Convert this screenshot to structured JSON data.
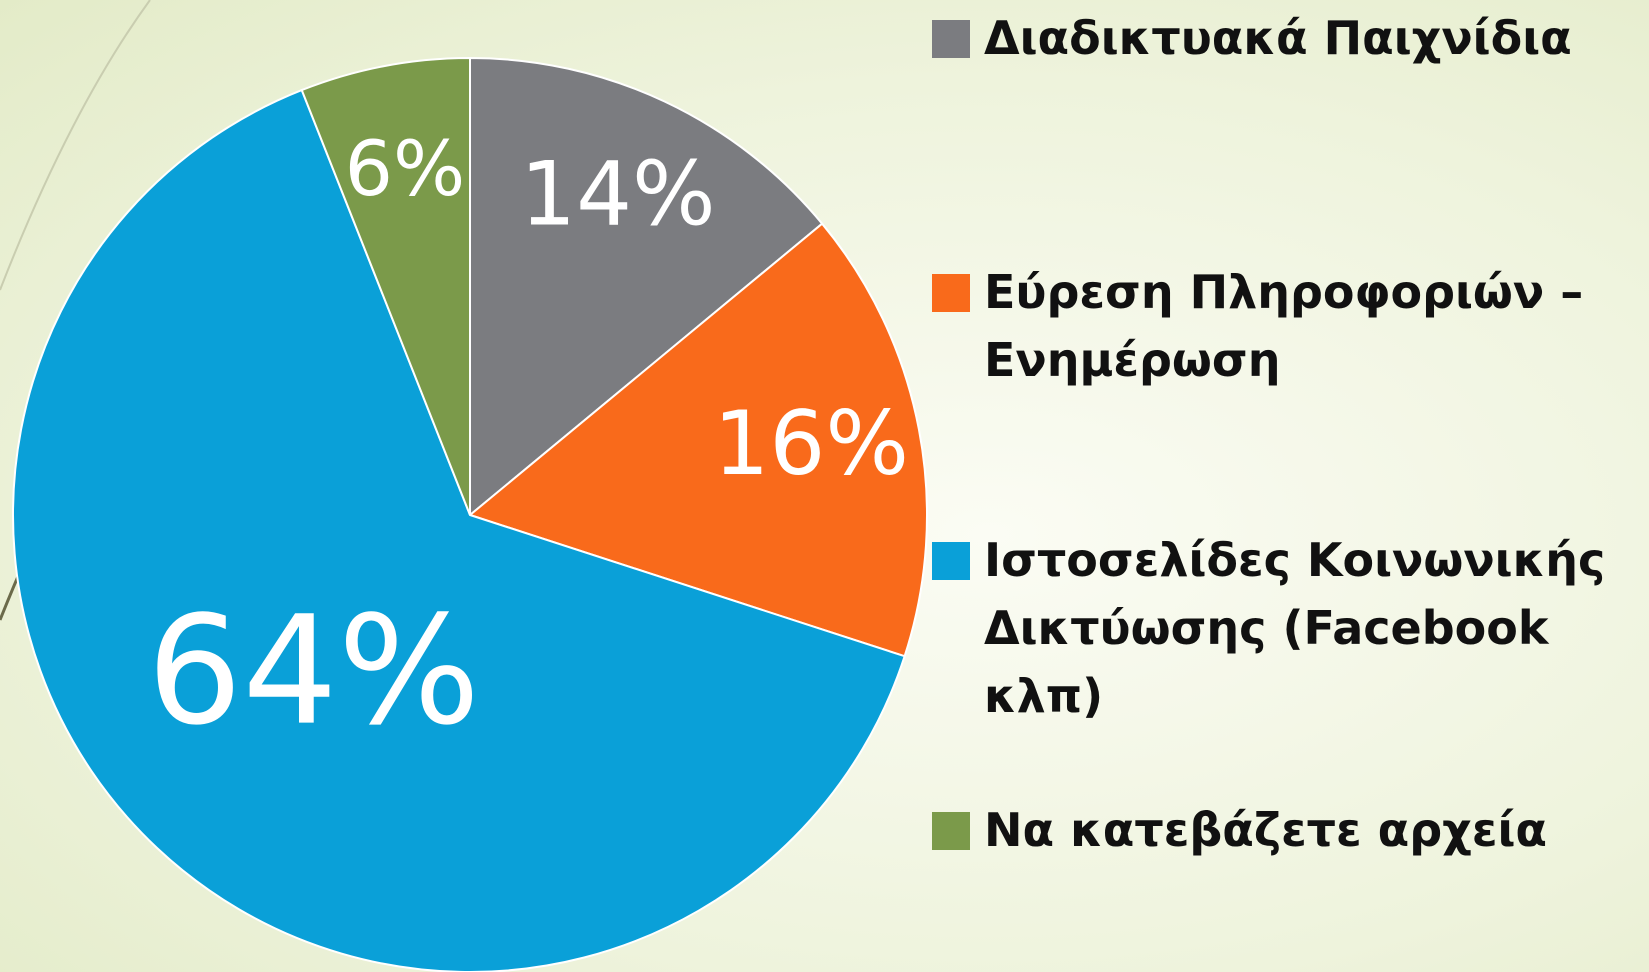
{
  "chart_data": {
    "type": "pie",
    "categories": [
      "Διαδικτυακά Παιχνίδια",
      "Εύρεση Πληροφοριών – Ενημέρωση",
      "Ιστοσελίδες Κοινωνικής Δικτύωσης (Facebook κλπ)",
      "Να κατεβάζετε αρχεία"
    ],
    "values": [
      14,
      16,
      64,
      6
    ],
    "value_labels": [
      "14%",
      "16%",
      "64%",
      "6%"
    ],
    "colors": [
      "#7b7c80",
      "#f96a1b",
      "#0aa0d8",
      "#7b9a4a"
    ],
    "legend": "right"
  }
}
